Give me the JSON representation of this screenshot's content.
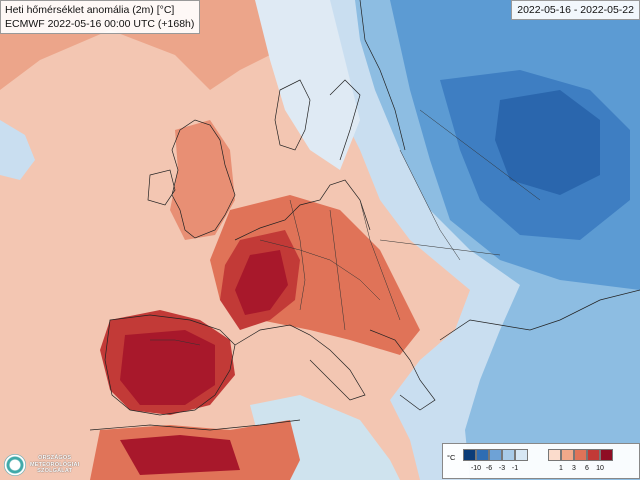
{
  "map": {
    "title": "Heti hőmérséklet anomália (2m) [°C]",
    "run": "ECMWF 2022-05-16 00:00 UTC (+168h)",
    "period": "2022-05-16 - 2022-05-22"
  },
  "legend": {
    "unit": "°C",
    "cold_ticks": [
      "-10",
      "-6",
      "-3",
      "-1"
    ],
    "warm_ticks": [
      "1",
      "3",
      "6",
      "10"
    ],
    "cold_colors": [
      "#0b3c78",
      "#2f6db3",
      "#6ea2d6",
      "#a9cbe8",
      "#d7e7f4"
    ],
    "warm_colors": [
      "#fbdccc",
      "#f1a98a",
      "#e07358",
      "#c23a37",
      "#8f0d24"
    ]
  },
  "logo": {
    "line1": "ORSZÁGOS",
    "line2": "METEOROLÓGIAI",
    "line3": "SZOLGÁLAT"
  }
}
